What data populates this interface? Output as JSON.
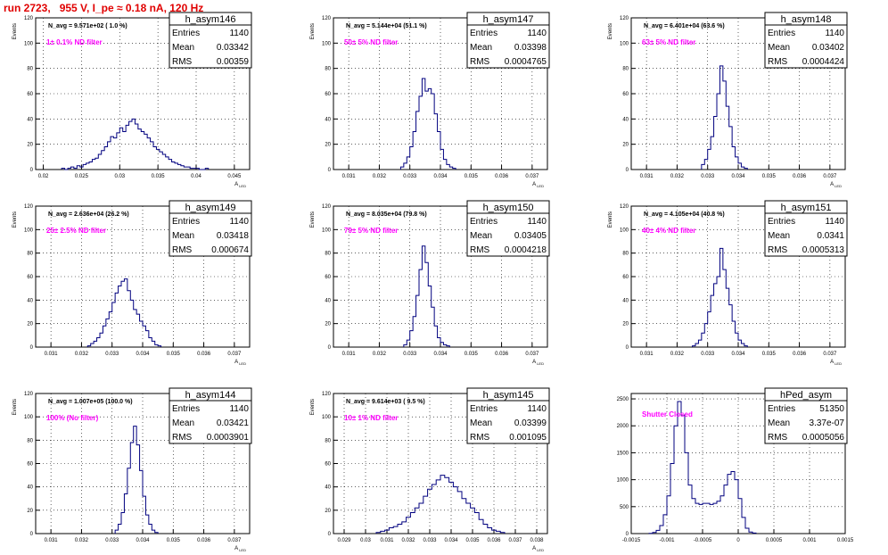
{
  "page_title": "run 2723,   955 V, I_pe ≈ 0.18 nA, 120 Hz",
  "colors": {
    "histogram": "#00007f",
    "grid": "#000000",
    "annotation": "#ff00ff",
    "title": "#e00000"
  },
  "chart_data": [
    {
      "type": "histogram",
      "name": "h_asym146",
      "navg": "N_avg = 9.571e+02 ( 1.0 %)",
      "annotation": "1± 0.1% ND filter",
      "stats": {
        "entries": "1140",
        "mean": "0.03342",
        "rms": "0.00359"
      },
      "xlim": [
        0.019,
        0.047
      ],
      "ylim": [
        0,
        120
      ],
      "ylabel": "Events",
      "xlabel": "A_LED",
      "xticks": [
        0.02,
        0.025,
        0.03,
        0.035,
        0.04,
        0.045
      ],
      "xticklabels": [
        "0.02",
        "0.025",
        "0.03",
        "0.035",
        "0.04",
        "0.045"
      ],
      "yticks": [
        0,
        20,
        40,
        60,
        80,
        100,
        120
      ],
      "bins": {
        "x0": 0.0224,
        "width": 0.0004,
        "values": [
          1,
          0,
          1,
          2,
          1,
          3,
          2,
          4,
          5,
          6,
          8,
          9,
          12,
          15,
          18,
          22,
          26,
          25,
          29,
          33,
          30,
          35,
          38,
          40,
          36,
          32,
          30,
          28,
          25,
          22,
          18,
          16,
          14,
          12,
          10,
          8,
          6,
          5,
          4,
          3,
          2,
          2,
          1,
          1,
          1,
          0,
          0,
          1
        ]
      }
    },
    {
      "type": "histogram",
      "name": "h_asym147",
      "navg": "N_avg = 5.144e+04 (51.1 %)",
      "annotation": "50± 5% ND filter",
      "stats": {
        "entries": "1140",
        "mean": "0.03398",
        "rms": "0.0004765"
      },
      "xlim": [
        0.0305,
        0.0375
      ],
      "ylim": [
        0,
        120
      ],
      "ylabel": "Events",
      "xlabel": "A_LED",
      "xticks": [
        0.031,
        0.032,
        0.033,
        0.034,
        0.035,
        0.036,
        0.037
      ],
      "xticklabels": [
        "0.031",
        "0.032",
        "0.033",
        "0.034",
        "0.035",
        "0.036",
        "0.037"
      ],
      "yticks": [
        0,
        20,
        40,
        60,
        80,
        100,
        120
      ],
      "bins": {
        "x0": 0.0327,
        "width": 0.0001,
        "values": [
          2,
          5,
          10,
          18,
          30,
          46,
          58,
          72,
          62,
          64,
          60,
          44,
          30,
          16,
          8,
          4,
          2,
          1
        ]
      }
    },
    {
      "type": "histogram",
      "name": "h_asym148",
      "navg": "N_avg = 6.401e+04 (63.6 %)",
      "annotation": "63± 5% ND filter",
      "stats": {
        "entries": "1140",
        "mean": "0.03402",
        "rms": "0.0004424"
      },
      "xlim": [
        0.0305,
        0.0375
      ],
      "ylim": [
        0,
        120
      ],
      "ylabel": "Events",
      "xlabel": "A_LED",
      "xticks": [
        0.031,
        0.032,
        0.033,
        0.034,
        0.035,
        0.036,
        0.037
      ],
      "xticklabels": [
        "0.031",
        "0.032",
        "0.033",
        "0.034",
        "0.035",
        "0.036",
        "0.037"
      ],
      "yticks": [
        0,
        20,
        40,
        60,
        80,
        100,
        120
      ],
      "bins": {
        "x0": 0.0328,
        "width": 0.0001,
        "values": [
          4,
          8,
          16,
          26,
          42,
          60,
          82,
          70,
          50,
          34,
          18,
          10,
          5,
          2,
          1
        ]
      }
    },
    {
      "type": "histogram",
      "name": "h_asym149",
      "navg": "N_avg = 2.636e+04 (26.2 %)",
      "annotation": "25± 2.5% ND filter",
      "stats": {
        "entries": "1140",
        "mean": "0.03418",
        "rms": "0.000674"
      },
      "xlim": [
        0.0305,
        0.0375
      ],
      "ylim": [
        0,
        120
      ],
      "ylabel": "Events",
      "xlabel": "A_LED",
      "xticks": [
        0.031,
        0.032,
        0.033,
        0.034,
        0.035,
        0.036,
        0.037
      ],
      "xticklabels": [
        "0.031",
        "0.032",
        "0.033",
        "0.034",
        "0.035",
        "0.036",
        "0.037"
      ],
      "yticks": [
        0,
        20,
        40,
        60,
        80,
        100,
        120
      ],
      "bins": {
        "x0": 0.0322,
        "width": 0.0001,
        "values": [
          1,
          3,
          5,
          8,
          12,
          18,
          24,
          30,
          38,
          46,
          52,
          56,
          58,
          48,
          40,
          32,
          28,
          22,
          18,
          14,
          8,
          5,
          2,
          1
        ]
      }
    },
    {
      "type": "histogram",
      "name": "h_asym150",
      "navg": "N_avg = 8.035e+04 (79.8 %)",
      "annotation": "79± 5% ND filter",
      "stats": {
        "entries": "1140",
        "mean": "0.03405",
        "rms": "0.0004218"
      },
      "xlim": [
        0.0305,
        0.0375
      ],
      "ylim": [
        0,
        120
      ],
      "ylabel": "Events",
      "xlabel": "A_LED",
      "xticks": [
        0.031,
        0.032,
        0.033,
        0.034,
        0.035,
        0.036,
        0.037
      ],
      "xticklabels": [
        "0.031",
        "0.032",
        "0.033",
        "0.034",
        "0.035",
        "0.036",
        "0.037"
      ],
      "yticks": [
        0,
        20,
        40,
        60,
        80,
        100,
        120
      ],
      "bins": {
        "x0": 0.0328,
        "width": 0.0001,
        "values": [
          2,
          6,
          14,
          26,
          44,
          66,
          86,
          72,
          52,
          34,
          18,
          8,
          4,
          2,
          1
        ]
      }
    },
    {
      "type": "histogram",
      "name": "h_asym151",
      "navg": "N_avg = 4.105e+04 (40.8 %)",
      "annotation": "40± 4% ND filter",
      "stats": {
        "entries": "1140",
        "mean": "0.0341",
        "rms": "0.0005313"
      },
      "xlim": [
        0.0305,
        0.0375
      ],
      "ylim": [
        0,
        120
      ],
      "ylabel": "Events",
      "xlabel": "A_LED",
      "xticks": [
        0.031,
        0.032,
        0.033,
        0.034,
        0.035,
        0.036,
        0.037
      ],
      "xticklabels": [
        "0.031",
        "0.032",
        "0.033",
        "0.034",
        "0.035",
        "0.036",
        "0.037"
      ],
      "yticks": [
        0,
        20,
        40,
        60,
        80,
        100,
        120
      ],
      "bins": {
        "x0": 0.0325,
        "width": 0.0001,
        "values": [
          1,
          3,
          6,
          12,
          20,
          30,
          44,
          54,
          60,
          84,
          66,
          50,
          36,
          22,
          12,
          6,
          3,
          1
        ]
      }
    },
    {
      "type": "histogram",
      "name": "h_asym144",
      "navg": "N_avg = 1.007e+05 (100.0 %)",
      "annotation": "100% (No filter)",
      "stats": {
        "entries": "1140",
        "mean": "0.03421",
        "rms": "0.0003901"
      },
      "xlim": [
        0.0305,
        0.0375
      ],
      "ylim": [
        0,
        120
      ],
      "ylabel": "Events",
      "xlabel": "A_LED",
      "xticks": [
        0.031,
        0.032,
        0.033,
        0.034,
        0.035,
        0.036,
        0.037
      ],
      "xticklabels": [
        "0.031",
        "0.032",
        "0.033",
        "0.034",
        "0.035",
        "0.036",
        "0.037"
      ],
      "yticks": [
        0,
        20,
        40,
        60,
        80,
        100,
        120
      ],
      "bins": {
        "x0": 0.0331,
        "width": 0.0001,
        "values": [
          3,
          8,
          18,
          34,
          56,
          78,
          92,
          76,
          54,
          32,
          16,
          8,
          3,
          1
        ]
      }
    },
    {
      "type": "histogram",
      "name": "h_asym145",
      "navg": "N_avg = 9.614e+03 ( 9.5 %)",
      "annotation": "10± 1% ND filter",
      "stats": {
        "entries": "1140",
        "mean": "0.03399",
        "rms": "0.001095"
      },
      "xlim": [
        0.0285,
        0.0385
      ],
      "ylim": [
        0,
        120
      ],
      "ylabel": "Events",
      "xlabel": "A_LED",
      "xticks": [
        0.029,
        0.03,
        0.031,
        0.032,
        0.033,
        0.034,
        0.035,
        0.036,
        0.037,
        0.038
      ],
      "xticklabels": [
        "0.029",
        "0.03",
        "0.031",
        "0.032",
        "0.033",
        "0.034",
        "0.035",
        "0.036",
        "0.037",
        "0.038"
      ],
      "yticks": [
        0,
        20,
        40,
        60,
        80,
        100,
        120
      ],
      "bins": {
        "x0": 0.0305,
        "width": 0.0002,
        "values": [
          1,
          2,
          3,
          5,
          6,
          8,
          10,
          14,
          18,
          22,
          26,
          32,
          38,
          42,
          46,
          50,
          48,
          44,
          40,
          36,
          30,
          26,
          22,
          18,
          12,
          8,
          5,
          3,
          2,
          1
        ]
      }
    },
    {
      "type": "histogram",
      "name": "hPed_asym",
      "navg": "",
      "annotation": "Shutter Closed",
      "stats": {
        "entries": "51350",
        "mean": "3.37e-07",
        "rms": "0.0005056"
      },
      "xlim": [
        -0.0015,
        0.0015
      ],
      "ylim": [
        0,
        2600
      ],
      "ylabel": "",
      "xlabel": "",
      "xticks": [
        -0.0015,
        -0.001,
        -0.0005,
        0,
        0.0005,
        0.001,
        0.0015
      ],
      "xticklabels": [
        "-0.0015",
        "-0.001",
        "-0.0005",
        "0",
        "0.0005",
        "0.001",
        "0.0015"
      ],
      "yticks": [
        0,
        500,
        1000,
        1500,
        2000,
        2500
      ],
      "bins": {
        "x0": -0.00125,
        "width": 5e-05,
        "values": [
          5,
          20,
          60,
          150,
          350,
          700,
          1300,
          2000,
          2450,
          2200,
          1500,
          900,
          650,
          560,
          540,
          560,
          560,
          540,
          560,
          600,
          700,
          900,
          1100,
          1150,
          1000,
          650,
          300,
          100,
          30,
          10
        ]
      }
    }
  ]
}
